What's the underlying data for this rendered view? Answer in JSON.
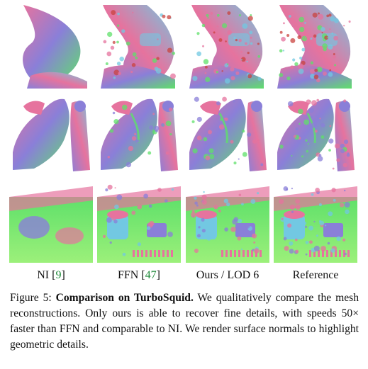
{
  "figure": {
    "columns": [
      {
        "label": "NI",
        "ref": "9"
      },
      {
        "label": "FFN",
        "ref": "47"
      },
      {
        "label": "Ours / LOD 6",
        "ref": ""
      },
      {
        "label": "Reference",
        "ref": ""
      }
    ],
    "rows": [
      "bunny-legs",
      "horse-statue",
      "machine-parts"
    ],
    "colors": {
      "pink": "#e6739e",
      "purple": "#8a7fd8",
      "green": "#5fe06a",
      "cyan": "#72c8e2",
      "ref_link": "#1f8a3a"
    }
  },
  "caption": {
    "prefix": "Figure 5: ",
    "bold": "Comparison on TurboSquid.",
    "text": " We qualitatively compare the mesh reconstructions. Only ours is able to recover fine details, with speeds 50× faster than FFN and comparable to NI. We render surface normals to highlight geometric details."
  }
}
